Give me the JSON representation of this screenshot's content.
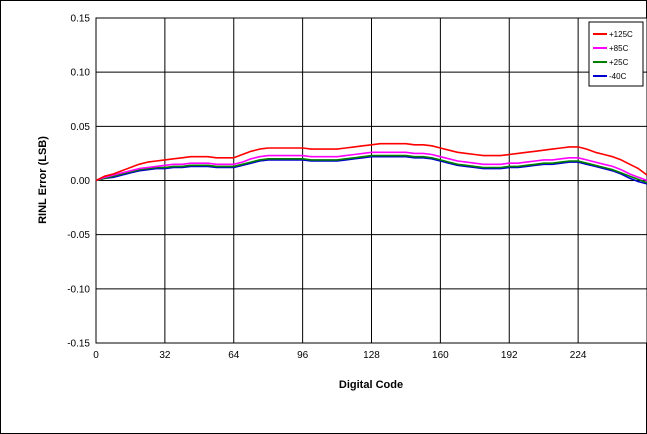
{
  "chart_data": {
    "type": "line",
    "title": "",
    "xlabel": "Digital Code",
    "ylabel": "RINL Error (LSB)",
    "xlim": [
      0,
      256
    ],
    "ylim": [
      -0.15,
      0.15
    ],
    "x_ticks": [
      0,
      32,
      64,
      96,
      128,
      160,
      192,
      224
    ],
    "y_ticks": [
      0.15,
      0.1,
      0.05,
      0.0,
      -0.05,
      -0.1,
      -0.15
    ],
    "y_tick_labels": [
      "0.15",
      "0.10",
      "0.05",
      "0.00",
      "-0.05",
      "-0.10",
      "-0.15"
    ],
    "grid": true,
    "legend_position": "top-right",
    "series": [
      {
        "name": "+125C",
        "color": "#ff0000",
        "x": [
          0,
          4,
          8,
          12,
          16,
          20,
          24,
          28,
          32,
          36,
          40,
          44,
          48,
          52,
          56,
          60,
          64,
          68,
          72,
          76,
          80,
          84,
          88,
          92,
          96,
          100,
          104,
          108,
          112,
          116,
          120,
          124,
          128,
          132,
          136,
          140,
          144,
          148,
          152,
          156,
          160,
          164,
          168,
          172,
          176,
          180,
          184,
          188,
          192,
          196,
          200,
          204,
          208,
          212,
          216,
          220,
          224,
          228,
          232,
          236,
          240,
          244,
          248,
          252,
          256
        ],
        "values": [
          0.0,
          0.004,
          0.006,
          0.009,
          0.012,
          0.015,
          0.017,
          0.018,
          0.019,
          0.02,
          0.021,
          0.022,
          0.022,
          0.022,
          0.021,
          0.021,
          0.021,
          0.024,
          0.027,
          0.029,
          0.03,
          0.03,
          0.03,
          0.03,
          0.03,
          0.029,
          0.029,
          0.029,
          0.029,
          0.03,
          0.031,
          0.032,
          0.033,
          0.034,
          0.034,
          0.034,
          0.034,
          0.033,
          0.033,
          0.032,
          0.03,
          0.028,
          0.026,
          0.025,
          0.024,
          0.023,
          0.023,
          0.023,
          0.024,
          0.025,
          0.026,
          0.027,
          0.028,
          0.029,
          0.03,
          0.031,
          0.031,
          0.029,
          0.026,
          0.024,
          0.022,
          0.019,
          0.015,
          0.011,
          0.005
        ]
      },
      {
        "name": "+85C",
        "color": "#ff00ff",
        "x": [
          0,
          4,
          8,
          12,
          16,
          20,
          24,
          28,
          32,
          36,
          40,
          44,
          48,
          52,
          56,
          60,
          64,
          68,
          72,
          76,
          80,
          84,
          88,
          92,
          96,
          100,
          104,
          108,
          112,
          116,
          120,
          124,
          128,
          132,
          136,
          140,
          144,
          148,
          152,
          156,
          160,
          164,
          168,
          172,
          176,
          180,
          184,
          188,
          192,
          196,
          200,
          204,
          208,
          212,
          216,
          220,
          224,
          228,
          232,
          236,
          240,
          244,
          248,
          252,
          256
        ],
        "values": [
          0.0,
          0.003,
          0.005,
          0.007,
          0.009,
          0.011,
          0.012,
          0.013,
          0.014,
          0.015,
          0.015,
          0.016,
          0.016,
          0.016,
          0.015,
          0.015,
          0.015,
          0.017,
          0.02,
          0.022,
          0.023,
          0.023,
          0.023,
          0.023,
          0.023,
          0.022,
          0.022,
          0.022,
          0.022,
          0.023,
          0.024,
          0.025,
          0.026,
          0.026,
          0.026,
          0.026,
          0.026,
          0.025,
          0.025,
          0.024,
          0.022,
          0.02,
          0.018,
          0.017,
          0.016,
          0.015,
          0.015,
          0.015,
          0.016,
          0.016,
          0.017,
          0.018,
          0.019,
          0.019,
          0.02,
          0.021,
          0.021,
          0.019,
          0.017,
          0.015,
          0.013,
          0.01,
          0.006,
          0.003,
          0.0
        ]
      },
      {
        "name": "+25C",
        "color": "#008000",
        "x": [
          0,
          4,
          8,
          12,
          16,
          20,
          24,
          28,
          32,
          36,
          40,
          44,
          48,
          52,
          56,
          60,
          64,
          68,
          72,
          76,
          80,
          84,
          88,
          92,
          96,
          100,
          104,
          108,
          112,
          116,
          120,
          124,
          128,
          132,
          136,
          140,
          144,
          148,
          152,
          156,
          160,
          164,
          168,
          172,
          176,
          180,
          184,
          188,
          192,
          196,
          200,
          204,
          208,
          212,
          216,
          220,
          224,
          228,
          232,
          236,
          240,
          244,
          248,
          252,
          256
        ],
        "values": [
          0.0,
          0.002,
          0.004,
          0.006,
          0.008,
          0.01,
          0.011,
          0.012,
          0.012,
          0.013,
          0.013,
          0.014,
          0.014,
          0.014,
          0.013,
          0.013,
          0.013,
          0.015,
          0.017,
          0.019,
          0.02,
          0.02,
          0.02,
          0.02,
          0.02,
          0.019,
          0.019,
          0.019,
          0.019,
          0.02,
          0.021,
          0.022,
          0.023,
          0.023,
          0.023,
          0.023,
          0.023,
          0.022,
          0.022,
          0.021,
          0.019,
          0.017,
          0.015,
          0.014,
          0.013,
          0.012,
          0.012,
          0.012,
          0.013,
          0.013,
          0.014,
          0.015,
          0.016,
          0.016,
          0.017,
          0.018,
          0.018,
          0.016,
          0.014,
          0.012,
          0.01,
          0.007,
          0.004,
          0.001,
          -0.002
        ]
      },
      {
        "name": "-40C",
        "color": "#0000cc",
        "x": [
          0,
          4,
          8,
          12,
          16,
          20,
          24,
          28,
          32,
          36,
          40,
          44,
          48,
          52,
          56,
          60,
          64,
          68,
          72,
          76,
          80,
          84,
          88,
          92,
          96,
          100,
          104,
          108,
          112,
          116,
          120,
          124,
          128,
          132,
          136,
          140,
          144,
          148,
          152,
          156,
          160,
          164,
          168,
          172,
          176,
          180,
          184,
          188,
          192,
          196,
          200,
          204,
          208,
          212,
          216,
          220,
          224,
          228,
          232,
          236,
          240,
          244,
          248,
          252,
          256
        ],
        "values": [
          0.0,
          0.002,
          0.003,
          0.005,
          0.007,
          0.009,
          0.01,
          0.011,
          0.011,
          0.012,
          0.012,
          0.013,
          0.013,
          0.013,
          0.012,
          0.012,
          0.012,
          0.014,
          0.016,
          0.018,
          0.019,
          0.019,
          0.019,
          0.019,
          0.019,
          0.018,
          0.018,
          0.018,
          0.018,
          0.019,
          0.02,
          0.021,
          0.022,
          0.022,
          0.022,
          0.022,
          0.022,
          0.021,
          0.021,
          0.02,
          0.018,
          0.016,
          0.014,
          0.013,
          0.012,
          0.011,
          0.011,
          0.011,
          0.012,
          0.012,
          0.013,
          0.014,
          0.015,
          0.015,
          0.016,
          0.017,
          0.017,
          0.015,
          0.013,
          0.011,
          0.009,
          0.006,
          0.002,
          -0.001,
          -0.003
        ]
      }
    ]
  }
}
